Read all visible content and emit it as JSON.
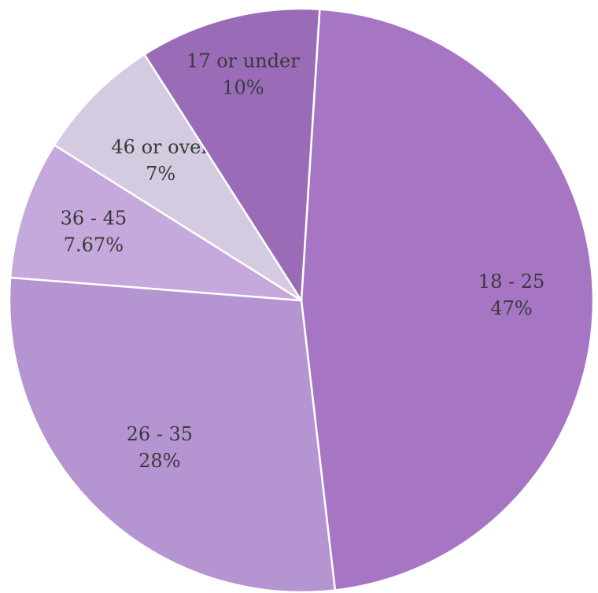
{
  "chart_data": {
    "type": "pie",
    "slices": [
      {
        "label": "18 - 25",
        "value_text": "47%",
        "value": 47,
        "color": "#a676c4"
      },
      {
        "label": "26 - 35",
        "value_text": "28%",
        "value": 28,
        "color": "#b594d2"
      },
      {
        "label": "36 - 45",
        "value_text": "7.67%",
        "value": 7.67,
        "color": "#c5a8dc"
      },
      {
        "label": "46 or over",
        "value_text": "7%",
        "value": 7,
        "color": "#d4cbe0"
      },
      {
        "label": "17 or under",
        "value_text": "10%",
        "value": 10,
        "color": "#9a6cb8"
      }
    ]
  }
}
